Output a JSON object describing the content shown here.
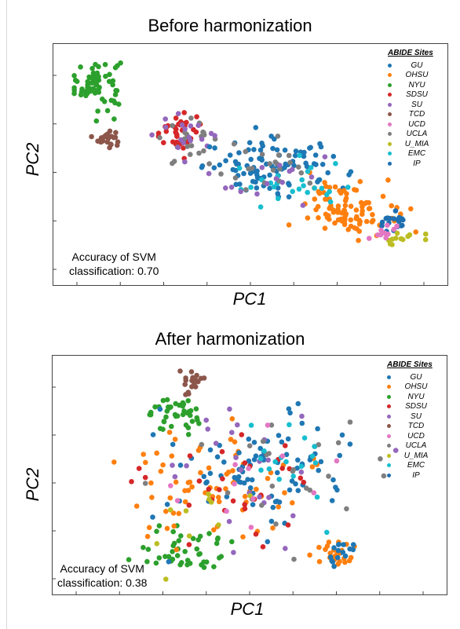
{
  "site_colors": {
    "GU": "#1f77b4",
    "OHSU": "#ff7f0e",
    "NYU": "#2ca02c",
    "SDSU": "#d62728",
    "SU": "#9467bd",
    "TCD": "#8c564b",
    "UCD": "#e377c2",
    "UCLA": "#7f7f7f",
    "U_MIA": "#bcbd22",
    "EMC": "#17becf",
    "IP": "#1f6fb0"
  },
  "chart_data": [
    {
      "type": "scatter",
      "title": "Before harmonization",
      "xlabel": "PC1",
      "ylabel": "PC2",
      "legend_title": "ABIDE Sites",
      "legend_position": "top-right",
      "legend": [
        "GU",
        "OHSU",
        "NYU",
        "SDSU",
        "SU",
        "TCD",
        "UCD",
        "UCLA",
        "U_MIA",
        "EMC",
        "IP"
      ],
      "annotation": [
        "Accuracy of SVM",
        "classification: 0.70"
      ],
      "xlim": [
        0,
        10
      ],
      "ylim": [
        0,
        10
      ],
      "grid": false,
      "clusters": [
        {
          "site": "NYU",
          "cx": 0.7,
          "cy": 8.7,
          "sx": 0.35,
          "sy": 0.6,
          "n": 70
        },
        {
          "site": "TCD",
          "cx": 1.0,
          "cy": 6.2,
          "sx": 0.12,
          "sy": 0.2,
          "n": 25
        },
        {
          "site": "SDSU",
          "cx": 3.0,
          "cy": 6.5,
          "sx": 0.35,
          "sy": 0.4,
          "n": 35
        },
        {
          "site": "UCLA",
          "cx": 3.3,
          "cy": 6.0,
          "sx": 0.4,
          "sy": 0.5,
          "n": 22
        },
        {
          "site": "SU",
          "cx": 3.1,
          "cy": 6.4,
          "sx": 0.5,
          "sy": 0.5,
          "n": 18
        },
        {
          "site": "GU",
          "cx": 5.7,
          "cy": 4.9,
          "sx": 1.0,
          "sy": 0.6,
          "n": 95
        },
        {
          "site": "OHSU",
          "cx": 7.8,
          "cy": 3.0,
          "sx": 0.6,
          "sy": 0.6,
          "n": 95
        },
        {
          "site": "EMC",
          "cx": 6.0,
          "cy": 4.1,
          "sx": 0.8,
          "sy": 0.6,
          "n": 25
        },
        {
          "site": "UCLA",
          "cx": 5.5,
          "cy": 4.5,
          "sx": 0.8,
          "sy": 0.7,
          "n": 22
        },
        {
          "site": "SU",
          "cx": 5.8,
          "cy": 4.3,
          "sx": 1.0,
          "sy": 0.6,
          "n": 15
        },
        {
          "site": "IP",
          "cx": 9.0,
          "cy": 2.4,
          "sx": 0.2,
          "sy": 0.2,
          "n": 18
        },
        {
          "site": "U_MIA",
          "cx": 9.2,
          "cy": 1.6,
          "sx": 0.25,
          "sy": 0.2,
          "n": 12
        },
        {
          "site": "UCD",
          "cx": 8.6,
          "cy": 1.9,
          "sx": 0.3,
          "sy": 0.3,
          "n": 10
        }
      ]
    },
    {
      "type": "scatter",
      "title": "After harmonization",
      "xlabel": "PC1",
      "ylabel": "PC2",
      "legend_title": "ABIDE Sites",
      "legend_position": "top-right",
      "legend": [
        "GU",
        "OHSU",
        "NYU",
        "SDSU",
        "SU",
        "TCD",
        "UCD",
        "UCLA",
        "U_MIA",
        "EMC",
        "IP"
      ],
      "annotation": [
        "Accuracy of SVM",
        "classification: 0.38"
      ],
      "xlim": [
        0,
        10
      ],
      "ylim": [
        0,
        10
      ],
      "grid": false,
      "clusters": [
        {
          "site": "TCD",
          "cx": 3.4,
          "cy": 9.2,
          "sx": 0.15,
          "sy": 0.3,
          "n": 20
        },
        {
          "site": "NYU",
          "cx": 3.0,
          "cy": 7.7,
          "sx": 0.4,
          "sy": 0.4,
          "n": 40
        },
        {
          "site": "NYU",
          "cx": 3.3,
          "cy": 1.5,
          "sx": 0.6,
          "sy": 0.5,
          "n": 45
        },
        {
          "site": "OHSU",
          "cx": 4.0,
          "cy": 4.6,
          "sx": 1.2,
          "sy": 1.3,
          "n": 70
        },
        {
          "site": "GU",
          "cx": 5.3,
          "cy": 5.3,
          "sx": 1.4,
          "sy": 1.5,
          "n": 90
        },
        {
          "site": "SDSU",
          "cx": 4.5,
          "cy": 4.5,
          "sx": 1.2,
          "sy": 1.3,
          "n": 30
        },
        {
          "site": "SU",
          "cx": 4.8,
          "cy": 5.0,
          "sx": 1.3,
          "sy": 1.4,
          "n": 25
        },
        {
          "site": "UCLA",
          "cx": 5.5,
          "cy": 4.8,
          "sx": 1.3,
          "sy": 1.4,
          "n": 25
        },
        {
          "site": "EMC",
          "cx": 6.4,
          "cy": 5.5,
          "sx": 0.7,
          "sy": 1.3,
          "n": 18
        },
        {
          "site": "U_MIA",
          "cx": 3.8,
          "cy": 3.0,
          "sx": 1.2,
          "sy": 1.2,
          "n": 10
        },
        {
          "site": "UCD",
          "cx": 5.3,
          "cy": 5.0,
          "sx": 1.3,
          "sy": 1.4,
          "n": 12
        },
        {
          "site": "OHSU",
          "cx": 7.4,
          "cy": 1.3,
          "sx": 0.25,
          "sy": 0.35,
          "n": 25
        },
        {
          "site": "GU",
          "cx": 7.4,
          "cy": 1.4,
          "sx": 0.25,
          "sy": 0.4,
          "n": 15
        }
      ]
    }
  ]
}
